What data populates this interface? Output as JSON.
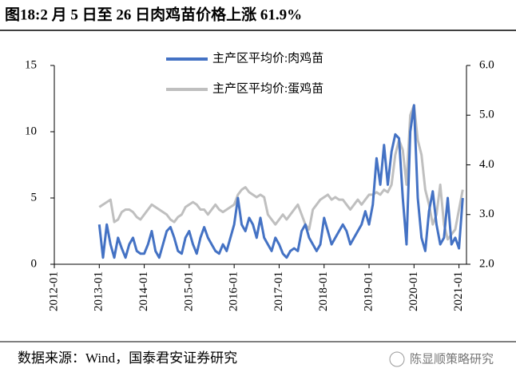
{
  "chart_data": {
    "type": "line",
    "title": "图18:2 月 5 日至 26 日肉鸡苗价格上涨 61.9%",
    "source": "数据来源：Wind，国泰君安证券研究",
    "watermark": "陈显顺策略研究",
    "x": [
      "2013-01",
      "2013-02",
      "2013-03",
      "2013-04",
      "2013-05",
      "2013-06",
      "2013-07",
      "2013-08",
      "2013-09",
      "2013-10",
      "2013-11",
      "2013-12",
      "2014-01",
      "2014-02",
      "2014-03",
      "2014-04",
      "2014-05",
      "2014-06",
      "2014-07",
      "2014-08",
      "2014-09",
      "2014-10",
      "2014-11",
      "2014-12",
      "2015-01",
      "2015-02",
      "2015-03",
      "2015-04",
      "2015-05",
      "2015-06",
      "2015-07",
      "2015-08",
      "2015-09",
      "2015-10",
      "2015-11",
      "2015-12",
      "2016-01",
      "2016-02",
      "2016-03",
      "2016-04",
      "2016-05",
      "2016-06",
      "2016-07",
      "2016-08",
      "2016-09",
      "2016-10",
      "2016-11",
      "2016-12",
      "2017-01",
      "2017-02",
      "2017-03",
      "2017-04",
      "2017-05",
      "2017-06",
      "2017-07",
      "2017-08",
      "2017-09",
      "2017-10",
      "2017-11",
      "2017-12",
      "2018-01",
      "2018-02",
      "2018-03",
      "2018-04",
      "2018-05",
      "2018-06",
      "2018-07",
      "2018-08",
      "2018-09",
      "2018-10",
      "2018-11",
      "2018-12",
      "2019-01",
      "2019-02",
      "2019-03",
      "2019-04",
      "2019-05",
      "2019-06",
      "2019-07",
      "2019-08",
      "2019-09",
      "2019-10",
      "2019-11",
      "2019-12",
      "2020-01",
      "2020-02",
      "2020-03",
      "2020-04",
      "2020-05",
      "2020-06",
      "2020-07",
      "2020-08",
      "2020-09",
      "2020-10",
      "2020-11",
      "2020-12",
      "2021-01",
      "2021-02"
    ],
    "series": [
      {
        "name": "主产区平均价:肉鸡苗",
        "color": "#4472c4",
        "axis": "y",
        "values": [
          3.0,
          0.5,
          3.0,
          1.5,
          0.5,
          2.0,
          1.2,
          0.5,
          1.5,
          2.0,
          1.0,
          0.8,
          0.8,
          1.5,
          2.5,
          1.0,
          0.5,
          1.5,
          2.5,
          2.8,
          2.0,
          1.0,
          0.8,
          2.0,
          2.5,
          1.5,
          0.8,
          2.0,
          2.8,
          2.0,
          1.5,
          1.0,
          0.8,
          1.5,
          1.0,
          2.0,
          3.0,
          5.0,
          3.0,
          2.5,
          3.5,
          3.0,
          2.0,
          3.5,
          2.0,
          1.5,
          1.0,
          2.0,
          1.5,
          0.8,
          0.5,
          1.0,
          1.2,
          1.0,
          2.5,
          3.0,
          2.0,
          1.5,
          1.0,
          1.5,
          3.5,
          2.5,
          1.5,
          2.0,
          2.5,
          3.0,
          2.5,
          1.5,
          2.0,
          2.5,
          3.0,
          4.0,
          3.0,
          4.5,
          8.0,
          6.0,
          9.0,
          6.0,
          8.5,
          9.8,
          9.5,
          5.0,
          1.5,
          10.0,
          12.0,
          5.0,
          2.0,
          1.0,
          4.0,
          5.5,
          3.0,
          1.5,
          2.0,
          5.0,
          1.5,
          2.0,
          1.2,
          5.0
        ]
      },
      {
        "name": "主产区平均价:蛋鸡苗",
        "color": "#bfbfbf",
        "axis": "y2",
        "values": [
          3.15,
          3.2,
          3.25,
          3.3,
          2.85,
          2.9,
          3.05,
          3.1,
          3.1,
          3.05,
          2.95,
          2.9,
          3.0,
          3.1,
          3.2,
          3.15,
          3.1,
          3.05,
          3.0,
          2.9,
          2.85,
          2.95,
          3.0,
          3.15,
          3.2,
          3.25,
          3.2,
          3.1,
          3.1,
          3.0,
          3.1,
          3.2,
          3.1,
          3.05,
          3.1,
          3.15,
          3.2,
          3.4,
          3.5,
          3.55,
          3.45,
          3.4,
          3.35,
          3.4,
          3.35,
          3.0,
          2.9,
          2.8,
          2.9,
          3.0,
          2.9,
          3.0,
          3.1,
          3.2,
          3.0,
          2.8,
          2.7,
          3.1,
          3.2,
          3.3,
          3.35,
          3.4,
          3.3,
          3.35,
          3.3,
          3.3,
          3.2,
          3.1,
          3.2,
          3.3,
          3.2,
          3.3,
          3.4,
          3.4,
          3.45,
          3.4,
          3.5,
          3.45,
          3.6,
          4.2,
          4.5,
          4.3,
          3.6,
          5.0,
          5.2,
          4.5,
          4.2,
          3.5,
          3.2,
          2.8,
          3.0,
          3.6,
          2.8,
          2.5,
          2.6,
          2.7,
          3.1,
          3.5
        ]
      }
    ],
    "xlim": [
      "2012-01",
      "2021-03"
    ],
    "xticks": [
      "2012-01",
      "2013-01",
      "2014-01",
      "2015-01",
      "2016-01",
      "2017-01",
      "2018-01",
      "2019-01",
      "2020-01",
      "2021-01"
    ],
    "ylim": [
      0,
      15
    ],
    "yticks": [
      0,
      5,
      10,
      15
    ],
    "y2lim": [
      2,
      6
    ],
    "y2ticks": [
      {
        "value": 2,
        "label": "2.0"
      },
      {
        "value": 3,
        "label": "3.0"
      },
      {
        "value": 4,
        "label": "4.0"
      },
      {
        "value": 5,
        "label": "5.0"
      },
      {
        "value": 6,
        "label": "6.0"
      }
    ]
  }
}
